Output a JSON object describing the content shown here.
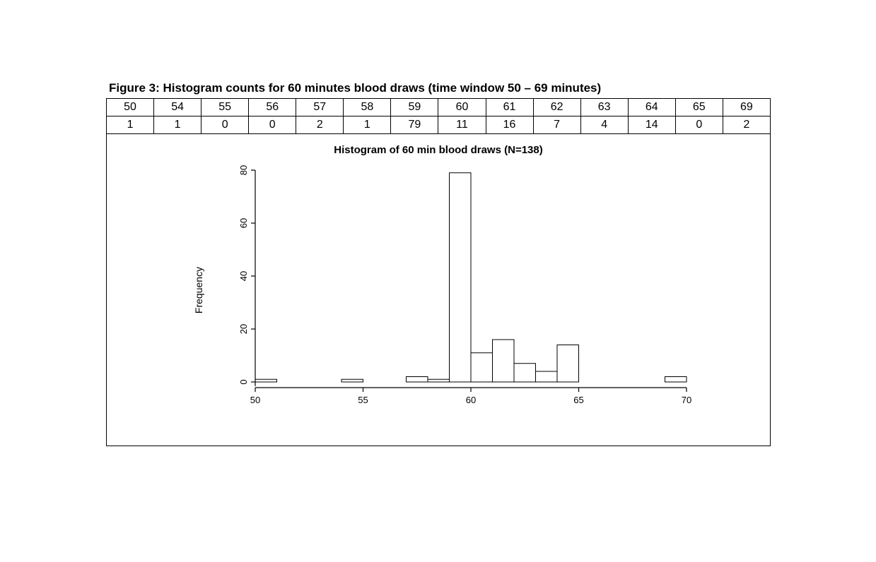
{
  "figure": {
    "title": "Figure 3: Histogram counts for 60 minutes blood draws (time window 50 – 69 minutes)"
  },
  "table": {
    "row1": [
      "50",
      "54",
      "55",
      "56",
      "57",
      "58",
      "59",
      "60",
      "61",
      "62",
      "63",
      "64",
      "65",
      "69"
    ],
    "row2": [
      "1",
      "1",
      "0",
      "0",
      "2",
      "1",
      "79",
      "11",
      "16",
      "7",
      "4",
      "14",
      "0",
      "2"
    ]
  },
  "chart": {
    "title": "Histogram of 60 min blood draws (N=138)",
    "type": "histogram",
    "ylabel": "Frequency",
    "x_min": 50,
    "x_max": 70,
    "y_min": 0,
    "y_max": 80,
    "x_ticks": [
      50,
      55,
      60,
      65,
      70
    ],
    "y_ticks": [
      0,
      20,
      40,
      60,
      80
    ],
    "bar_fill": "#ffffff",
    "bar_stroke": "#000000",
    "axis_color": "#000000",
    "background_color": "#ffffff",
    "bar_stroke_width": 1,
    "axis_stroke_width": 1.2,
    "tick_fontsize": 13,
    "title_fontsize": 15,
    "bars": [
      {
        "x": 50,
        "count": 1
      },
      {
        "x": 51,
        "count": 0
      },
      {
        "x": 52,
        "count": 0
      },
      {
        "x": 53,
        "count": 0
      },
      {
        "x": 54,
        "count": 1
      },
      {
        "x": 55,
        "count": 0
      },
      {
        "x": 56,
        "count": 0
      },
      {
        "x": 57,
        "count": 2
      },
      {
        "x": 58,
        "count": 1
      },
      {
        "x": 59,
        "count": 79
      },
      {
        "x": 60,
        "count": 11
      },
      {
        "x": 61,
        "count": 16
      },
      {
        "x": 62,
        "count": 7
      },
      {
        "x": 63,
        "count": 4
      },
      {
        "x": 64,
        "count": 14
      },
      {
        "x": 65,
        "count": 0
      },
      {
        "x": 66,
        "count": 0
      },
      {
        "x": 67,
        "count": 0
      },
      {
        "x": 68,
        "count": 0
      },
      {
        "x": 69,
        "count": 2
      }
    ]
  }
}
